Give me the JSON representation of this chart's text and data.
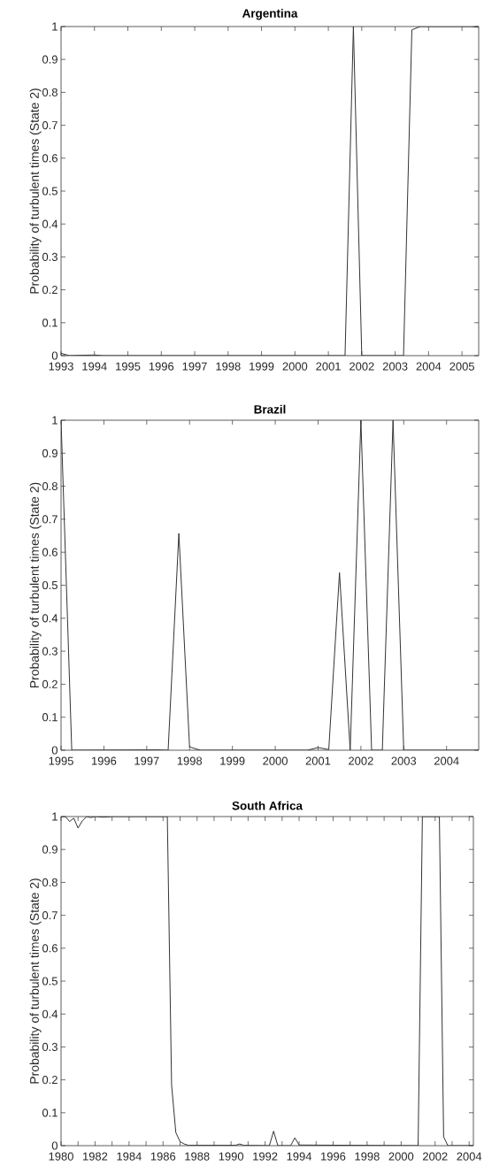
{
  "chart_data": [
    {
      "type": "line",
      "title": "Argentina",
      "ylabel": "Probability of turbulent times (State 2)",
      "color": "#333333",
      "x": [
        1993,
        1993.25,
        1994,
        1994.25,
        2001.5,
        2001.75,
        2002,
        2003.25,
        2003.5,
        2003.75,
        2005.25,
        2005.5
      ],
      "values": [
        0.007,
        0,
        0.002,
        0,
        0,
        1,
        0,
        0,
        0.99,
        1,
        1,
        0.998
      ],
      "xlim": [
        1993,
        2005.5
      ],
      "ylim": [
        0,
        1
      ],
      "xticks": [
        1993,
        1994,
        1995,
        1996,
        1997,
        1998,
        1999,
        2000,
        2001,
        2002,
        2003,
        2004,
        2005
      ],
      "yticks": [
        0,
        0.1,
        0.2,
        0.3,
        0.4,
        0.5,
        0.6,
        0.7,
        0.8,
        0.9,
        1
      ]
    },
    {
      "type": "line",
      "title": "Brazil",
      "ylabel": "Probability of turbulent times (State 2)",
      "color": "#333333",
      "x": [
        1995,
        1995.25,
        1997.25,
        1997.5,
        1997.75,
        1998,
        1998.25,
        2000.75,
        2001,
        2001.25,
        2001.5,
        2001.75,
        2002,
        2002.25,
        2002.5,
        2002.75,
        2003,
        2004.75
      ],
      "values": [
        1,
        0,
        0.001,
        0,
        0.657,
        0.01,
        0,
        0,
        0.008,
        0.002,
        0.538,
        0,
        1,
        0,
        0,
        1,
        0,
        0
      ],
      "xlim": [
        1995,
        2004.75
      ],
      "ylim": [
        0,
        1
      ],
      "xticks": [
        1995,
        1996,
        1997,
        1998,
        1999,
        2000,
        2001,
        2002,
        2003,
        2004
      ],
      "yticks": [
        0,
        0.1,
        0.2,
        0.3,
        0.4,
        0.5,
        0.6,
        0.7,
        0.8,
        0.9,
        1
      ]
    },
    {
      "type": "line",
      "title": "South Africa",
      "ylabel": "Probability of turbulent times (State 2)",
      "color": "#333333",
      "x": [
        1980,
        1980.25,
        1980.5,
        1980.75,
        1981,
        1981.25,
        1981.5,
        1981.75,
        1982,
        1982.5,
        1983,
        1986.25,
        1986.5,
        1986.75,
        1987,
        1987.25,
        1987.5,
        1990.25,
        1990.5,
        1990.75,
        1992.25,
        1992.5,
        1992.75,
        1993.5,
        1993.75,
        1994,
        2001,
        2001.25,
        2002.25,
        2002.5,
        2002.75,
        2004.25
      ],
      "values": [
        1,
        1,
        0.985,
        0.995,
        0.965,
        0.987,
        1,
        0.997,
        1,
        0.998,
        1,
        1,
        0.185,
        0.04,
        0.012,
        0.005,
        0.001,
        0.001,
        0.005,
        0.001,
        0,
        0.044,
        0,
        0,
        0.024,
        0.002,
        0,
        1,
        1,
        0.027,
        0,
        0
      ],
      "xlim": [
        1980,
        2004.25
      ],
      "ylim": [
        0,
        1
      ],
      "xticks": [
        1980,
        {
          "value": 1981,
          "label": null
        },
        1982,
        {
          "value": 1983,
          "label": null
        },
        1984,
        {
          "value": 1985,
          "label": null
        },
        1986,
        {
          "value": 1987,
          "label": null
        },
        1988,
        {
          "value": 1989,
          "label": null
        },
        1990,
        {
          "value": 1991,
          "label": null
        },
        1992,
        {
          "value": 1993,
          "label": null
        },
        1994,
        {
          "value": 1995,
          "label": null
        },
        1996,
        {
          "value": 1997,
          "label": null
        },
        1998,
        {
          "value": 1999,
          "label": null
        },
        2000,
        {
          "value": 2001,
          "label": null
        },
        2002,
        {
          "value": 2003,
          "label": null
        },
        2004
      ],
      "yticks": [
        0,
        0.1,
        0.2,
        0.3,
        0.4,
        0.5,
        0.6,
        0.7,
        0.8,
        0.9,
        1
      ]
    }
  ]
}
